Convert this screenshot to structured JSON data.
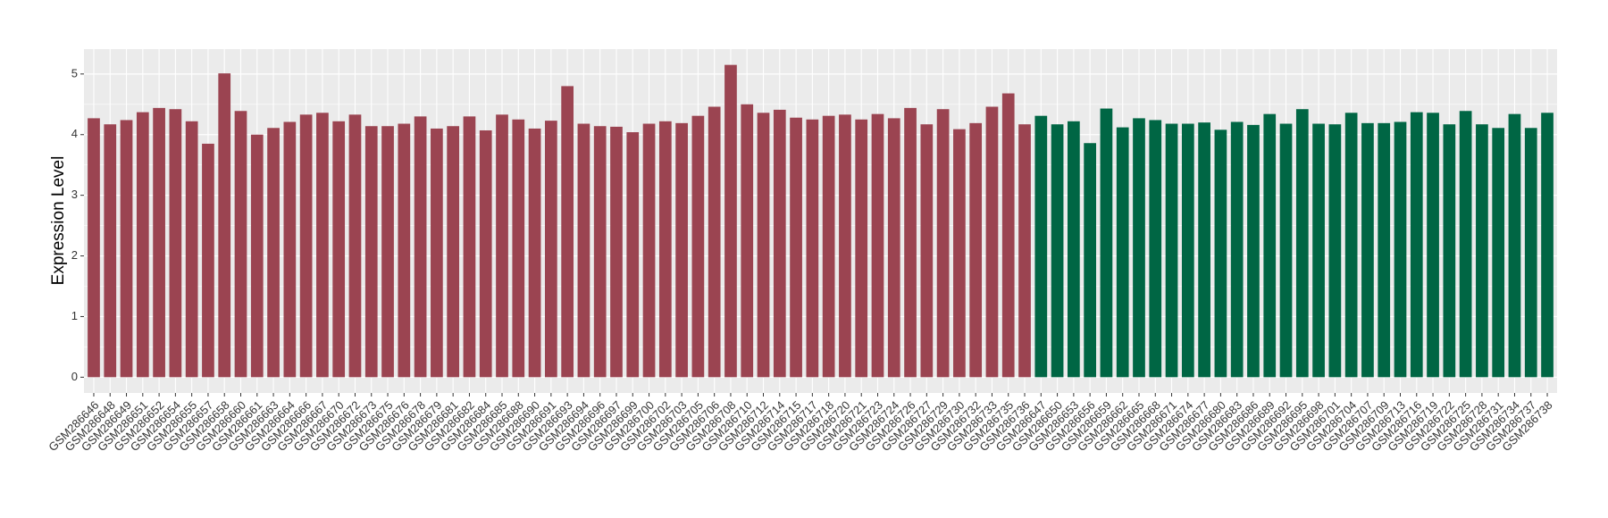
{
  "chart_data": {
    "type": "bar",
    "y_label": "Expression Level",
    "categories": [
      "GSM286646",
      "GSM286648",
      "GSM286649",
      "GSM286651",
      "GSM286652",
      "GSM286654",
      "GSM286655",
      "GSM286657",
      "GSM286658",
      "GSM286660",
      "GSM286661",
      "GSM286663",
      "GSM286664",
      "GSM286666",
      "GSM286667",
      "GSM286670",
      "GSM286672",
      "GSM286673",
      "GSM286675",
      "GSM286676",
      "GSM286678",
      "GSM286679",
      "GSM286681",
      "GSM286682",
      "GSM286684",
      "GSM286685",
      "GSM286688",
      "GSM286690",
      "GSM286691",
      "GSM286693",
      "GSM286694",
      "GSM286696",
      "GSM286697",
      "GSM286699",
      "GSM286700",
      "GSM286702",
      "GSM286703",
      "GSM286705",
      "GSM286706",
      "GSM286708",
      "GSM286710",
      "GSM286712",
      "GSM286714",
      "GSM286715",
      "GSM286717",
      "GSM286718",
      "GSM286720",
      "GSM286721",
      "GSM286723",
      "GSM286724",
      "GSM286726",
      "GSM286727",
      "GSM286729",
      "GSM286730",
      "GSM286732",
      "GSM286733",
      "GSM286735",
      "GSM286736",
      "GSM286647",
      "GSM286650",
      "GSM286653",
      "GSM286656",
      "GSM286659",
      "GSM286662",
      "GSM286665",
      "GSM286668",
      "GSM286671",
      "GSM286674",
      "GSM286677",
      "GSM286680",
      "GSM286683",
      "GSM286686",
      "GSM286689",
      "GSM286692",
      "GSM286695",
      "GSM286698",
      "GSM286701",
      "GSM286704",
      "GSM286707",
      "GSM286709",
      "GSM286713",
      "GSM286716",
      "GSM286719",
      "GSM286722",
      "GSM286725",
      "GSM286728",
      "GSM286731",
      "GSM286734",
      "GSM286737",
      "GSM286738"
    ],
    "series": [
      {
        "color": "#9b4451",
        "values": [
          4.27,
          4.17,
          4.24,
          4.37,
          4.44,
          4.42,
          4.22,
          3.85,
          5.01,
          4.39,
          4.0,
          4.11,
          4.21,
          4.33,
          4.36,
          4.22,
          4.33,
          4.14,
          4.14,
          4.18,
          4.3,
          4.1,
          4.14,
          4.3,
          4.07,
          4.33,
          4.25,
          4.1,
          4.23,
          4.8,
          4.18,
          4.14,
          4.13,
          4.04,
          4.18,
          4.22,
          4.19,
          4.31,
          4.46,
          5.15,
          4.5,
          4.36,
          4.41,
          4.28,
          4.25,
          4.31,
          4.33,
          4.25,
          4.34,
          4.27,
          4.44,
          4.17,
          4.42,
          4.09,
          4.19,
          4.46,
          4.68,
          4.17,
          null,
          null,
          null,
          null,
          null,
          null,
          null,
          null,
          null,
          null,
          null,
          null,
          null,
          null,
          null,
          null,
          null,
          null,
          null,
          null,
          null,
          null,
          null,
          null,
          null,
          null,
          null,
          null,
          null,
          null,
          null,
          null
        ]
      },
      {
        "color": "#006644",
        "values": [
          null,
          null,
          null,
          null,
          null,
          null,
          null,
          null,
          null,
          null,
          null,
          null,
          null,
          null,
          null,
          null,
          null,
          null,
          null,
          null,
          null,
          null,
          null,
          null,
          null,
          null,
          null,
          null,
          null,
          null,
          null,
          null,
          null,
          null,
          null,
          null,
          null,
          null,
          null,
          null,
          null,
          null,
          null,
          null,
          null,
          null,
          null,
          null,
          null,
          null,
          null,
          null,
          null,
          null,
          null,
          null,
          null,
          null,
          4.31,
          4.17,
          4.22,
          3.86,
          4.43,
          4.12,
          4.27,
          4.24,
          4.18,
          4.18,
          4.2,
          4.08,
          4.21,
          4.16,
          4.34,
          4.18,
          4.42,
          4.18,
          4.17,
          4.36,
          4.19,
          4.19,
          4.21,
          4.37,
          4.36,
          4.17,
          4.39,
          4.17,
          4.11,
          4.34,
          4.11,
          4.36
        ]
      }
    ],
    "ylim": [
      -0.26,
      5.41
    ],
    "yticks": [
      0,
      1,
      2,
      3,
      4,
      5
    ],
    "grid": true
  }
}
